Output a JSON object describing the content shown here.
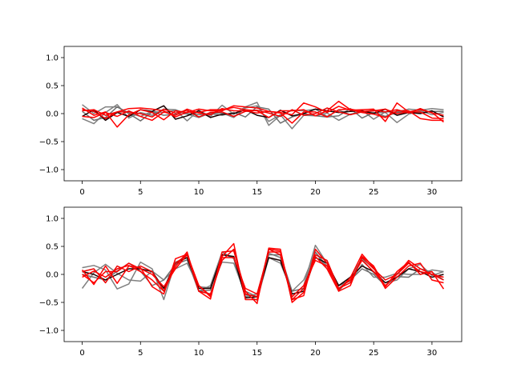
{
  "chart_data": [
    {
      "type": "line",
      "title": "",
      "xlabel": "",
      "ylabel": "",
      "xlim": [
        -1.55,
        32.55
      ],
      "ylim": [
        -1.2,
        1.2
      ],
      "xticks": [
        0,
        5,
        10,
        15,
        20,
        25,
        30
      ],
      "xtick_labels": [
        "0",
        "5",
        "10",
        "15",
        "20",
        "25",
        "30"
      ],
      "yticks": [
        -1.0,
        -0.5,
        0.0,
        0.5,
        1.0
      ],
      "ytick_labels": [
        "−1.0",
        "−0.5",
        "0.0",
        "0.5",
        "1.0"
      ],
      "grid": false,
      "x": [
        0,
        1,
        2,
        3,
        4,
        5,
        6,
        7,
        8,
        9,
        10,
        11,
        12,
        13,
        14,
        15,
        16,
        17,
        18,
        19,
        20,
        21,
        22,
        23,
        24,
        25,
        26,
        27,
        28,
        29,
        30,
        31
      ],
      "series": [
        {
          "color": "#808080",
          "values": [
            0.16,
            0.0,
            0.12,
            0.12,
            0.01,
            -0.05,
            0.04,
            0.02,
            0.06,
            -0.13,
            0.06,
            -0.05,
            0.15,
            -0.01,
            0.12,
            0.2,
            -0.21,
            -0.03,
            0.06,
            0.05,
            0.08,
            -0.05,
            0.06,
            -0.02,
            0.06,
            -0.1,
            0.03,
            0.03,
            0.08,
            0.06,
            0.09,
            0.07
          ]
        },
        {
          "color": "#808080",
          "values": [
            -0.09,
            -0.18,
            0.02,
            0.16,
            -0.08,
            0.02,
            -0.03,
            0.08,
            0.07,
            -0.01,
            -0.07,
            0.01,
            0.01,
            -0.07,
            0.1,
            0.14,
            -0.14,
            -0.02,
            -0.27,
            -0.03,
            -0.04,
            0.01,
            -0.12,
            -0.01,
            0.04,
            0.02,
            0.02,
            -0.16,
            -0.01,
            0.05,
            -0.02,
            0.02
          ]
        },
        {
          "color": "#707070",
          "values": [
            0.04,
            -0.12,
            -0.07,
            0.12,
            0.0,
            -0.13,
            0.03,
            -0.03,
            -0.01,
            0.0,
            -0.02,
            0.0,
            -0.03,
            0.02,
            -0.06,
            0.12,
            0.08,
            -0.17,
            -0.06,
            0.0,
            -0.04,
            -0.06,
            -0.04,
            0.09,
            -0.08,
            0.02,
            -0.05,
            0.02,
            0.04,
            0.01,
            0.04,
            0.04
          ]
        },
        {
          "color": "#1a0000",
          "values": [
            -0.05,
            0.07,
            -0.12,
            0.02,
            -0.05,
            0.07,
            0.04,
            0.14,
            -0.1,
            -0.04,
            0.05,
            -0.07,
            -0.01,
            0.0,
            0.07,
            -0.03,
            -0.07,
            0.06,
            -0.04,
            0.0,
            0.08,
            0.05,
            0.02,
            0.04,
            0.05,
            0.0,
            0.08,
            -0.03,
            0.02,
            0.0,
            0.05,
            -0.06
          ]
        },
        {
          "color": "#ff0000",
          "values": [
            0.1,
            -0.03,
            0.03,
            -0.24,
            -0.02,
            0.07,
            0.02,
            -0.11,
            0.05,
            0.02,
            0.08,
            0.05,
            0.05,
            0.14,
            0.12,
            0.1,
            0.04,
            0.02,
            -0.02,
            0.19,
            0.12,
            0.02,
            0.13,
            0.06,
            0.07,
            0.08,
            -0.14,
            0.19,
            0.03,
            0.07,
            0.02,
            -0.15
          ]
        },
        {
          "color": "#ff0000",
          "values": [
            0.05,
            0.07,
            -0.03,
            0.03,
            0.09,
            0.1,
            0.08,
            0.05,
            -0.06,
            0.03,
            0.02,
            0.07,
            0.07,
            0.11,
            0.07,
            0.05,
            -0.07,
            0.05,
            0.05,
            0.07,
            -0.04,
            0.05,
            0.22,
            0.07,
            0.02,
            -0.01,
            -0.07,
            0.05,
            0.05,
            -0.09,
            -0.12,
            -0.12
          ]
        },
        {
          "color": "#ff0000",
          "values": [
            -0.05,
            -0.07,
            0.02,
            -0.05,
            0.05,
            -0.05,
            -0.12,
            0.03,
            -0.03,
            0.08,
            0.01,
            -0.02,
            0.09,
            0.05,
            0.05,
            0.01,
            0.04,
            0.01,
            -0.17,
            0.03,
            0.03,
            -0.06,
            0.07,
            0.08,
            0.04,
            0.05,
            0.08,
            0.0,
            0.03,
            0.03,
            -0.08,
            -0.09
          ]
        },
        {
          "color": "#ee0000",
          "values": [
            0.07,
            0.04,
            -0.09,
            0.03,
            0.03,
            0.0,
            -0.06,
            0.08,
            0.01,
            0.06,
            -0.06,
            0.02,
            0.03,
            -0.05,
            0.04,
            0.06,
            0.01,
            -0.05,
            0.07,
            -0.03,
            0.0,
            0.1,
            0.03,
            -0.02,
            0.03,
            0.06,
            0.03,
            0.07,
            0.01,
            0.09,
            0.01,
            -0.03
          ]
        }
      ]
    },
    {
      "type": "line",
      "title": "",
      "xlabel": "",
      "ylabel": "",
      "xlim": [
        -1.55,
        32.55
      ],
      "ylim": [
        -1.2,
        1.2
      ],
      "xticks": [
        0,
        5,
        10,
        15,
        20,
        25,
        30
      ],
      "xtick_labels": [
        "0",
        "5",
        "10",
        "15",
        "20",
        "25",
        "30"
      ],
      "yticks": [
        -1.0,
        -0.5,
        0.0,
        0.5,
        1.0
      ],
      "ytick_labels": [
        "−1.0",
        "−0.5",
        "0.0",
        "0.5",
        "1.0"
      ],
      "grid": false,
      "x": [
        0,
        1,
        2,
        3,
        4,
        5,
        6,
        7,
        8,
        9,
        10,
        11,
        12,
        13,
        14,
        15,
        16,
        17,
        18,
        19,
        20,
        21,
        22,
        23,
        24,
        25,
        26,
        27,
        28,
        29,
        30,
        31
      ],
      "series": [
        {
          "color": "#808080",
          "values": [
            0.12,
            0.16,
            0.08,
            -0.26,
            -0.17,
            0.22,
            0.1,
            -0.45,
            0.22,
            0.3,
            -0.3,
            -0.2,
            0.4,
            0.28,
            -0.4,
            -0.35,
            0.38,
            0.3,
            -0.4,
            -0.2,
            0.52,
            0.2,
            -0.3,
            -0.05,
            0.28,
            0.03,
            -0.15,
            -0.1,
            0.1,
            0.18,
            -0.02,
            0.05
          ]
        },
        {
          "color": "#808080",
          "values": [
            -0.25,
            0.03,
            0.18,
            0.02,
            -0.1,
            -0.12,
            0.06,
            -0.1,
            0.1,
            0.2,
            -0.22,
            -0.24,
            0.22,
            0.2,
            -0.36,
            -0.46,
            0.3,
            0.2,
            -0.3,
            -0.1,
            0.4,
            0.15,
            -0.2,
            -0.12,
            0.18,
            -0.05,
            -0.05,
            0.02,
            0.0,
            0.0,
            0.08,
            0.05
          ]
        },
        {
          "color": "#707070",
          "values": [
            0.0,
            -0.05,
            -0.1,
            0.06,
            0.2,
            0.06,
            -0.2,
            -0.1,
            0.18,
            0.26,
            -0.3,
            -0.28,
            0.36,
            0.3,
            -0.3,
            -0.4,
            0.35,
            0.35,
            -0.3,
            -0.25,
            0.4,
            0.1,
            -0.2,
            -0.1,
            0.1,
            0.0,
            -0.2,
            -0.04,
            -0.05,
            0.1,
            0.04,
            -0.1
          ]
        },
        {
          "color": "#1a0000",
          "values": [
            0.05,
            0.0,
            -0.1,
            0.0,
            0.1,
            0.1,
            0.05,
            -0.25,
            0.2,
            0.3,
            -0.25,
            -0.25,
            0.35,
            0.32,
            -0.42,
            -0.4,
            0.3,
            0.25,
            -0.35,
            -0.3,
            0.3,
            0.2,
            -0.2,
            -0.05,
            0.15,
            0.05,
            -0.15,
            -0.05,
            0.1,
            0.05,
            -0.05,
            0.0
          ]
        },
        {
          "color": "#ff0000",
          "values": [
            0.08,
            -0.18,
            0.15,
            -0.16,
            0.15,
            0.12,
            -0.22,
            -0.35,
            0.28,
            0.36,
            -0.2,
            -0.38,
            0.32,
            0.55,
            -0.45,
            -0.45,
            0.45,
            0.42,
            -0.45,
            -0.38,
            0.45,
            0.2,
            -0.28,
            -0.06,
            0.36,
            0.12,
            -0.25,
            -0.05,
            0.15,
            0.2,
            -0.1,
            -0.15
          ]
        },
        {
          "color": "#ff0000",
          "values": [
            -0.05,
            0.06,
            -0.05,
            0.1,
            0.16,
            0.05,
            -0.1,
            -0.3,
            0.14,
            0.4,
            -0.3,
            -0.44,
            0.4,
            0.42,
            -0.3,
            -0.52,
            0.47,
            0.45,
            -0.5,
            -0.32,
            0.32,
            0.1,
            -0.3,
            -0.2,
            0.32,
            0.15,
            -0.22,
            0.05,
            0.22,
            0.0,
            0.05,
            -0.26
          ]
        },
        {
          "color": "#ff0000",
          "values": [
            0.0,
            -0.15,
            0.05,
            0.05,
            0.2,
            0.1,
            0.0,
            -0.22,
            0.1,
            0.35,
            -0.2,
            -0.4,
            0.3,
            0.3,
            -0.25,
            -0.35,
            0.4,
            0.4,
            -0.4,
            -0.2,
            0.25,
            0.15,
            -0.25,
            -0.1,
            0.25,
            0.05,
            -0.2,
            0.0,
            0.25,
            0.1,
            0.0,
            -0.05
          ]
        },
        {
          "color": "#ee0000",
          "values": [
            0.05,
            0.1,
            -0.15,
            0.15,
            0.05,
            0.15,
            0.05,
            -0.3,
            0.2,
            0.35,
            -0.3,
            -0.35,
            0.25,
            0.45,
            -0.35,
            -0.4,
            0.45,
            0.35,
            -0.45,
            -0.25,
            0.35,
            0.25,
            -0.25,
            -0.15,
            0.3,
            0.1,
            -0.1,
            0.0,
            0.2,
            0.05,
            0.0,
            -0.1
          ]
        }
      ]
    }
  ]
}
